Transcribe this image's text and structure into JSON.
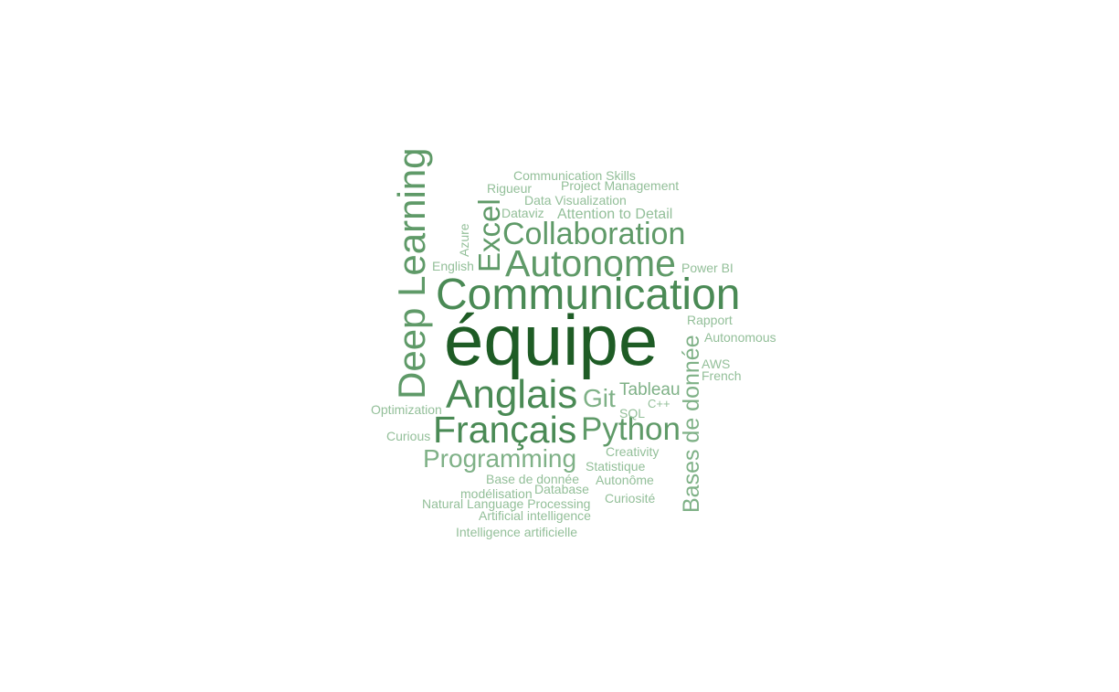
{
  "words": {
    "equipe": "équipe",
    "communication": "Communication",
    "autonome": "Autonome",
    "collaboration": "Collaboration",
    "deep_learning": "Deep Learning",
    "excel": "Excel",
    "anglais": "Anglais",
    "francais": "Français",
    "python": "Python",
    "git": "Git",
    "tableau": "Tableau",
    "programming": "Programming",
    "bases_de_donnee": "Bases de donnée",
    "communication_skills": "Communication Skills",
    "project_management": "Project Management",
    "rigueur": "Rigueur",
    "data_visualization": "Data Visualization",
    "dataviz": "Dataviz",
    "attention_to_detail": "Attention to Detail",
    "azure": "Azure",
    "english": "English",
    "power_bi": "Power BI",
    "rapport": "Rapport",
    "autonomous": "Autonomous",
    "aws": "AWS",
    "french": "French",
    "optimization": "Optimization",
    "cpp": "C++",
    "sql": "SQL",
    "curious": "Curious",
    "creativity": "Creativity",
    "statistique": "Statistique",
    "base_de_donnee": "Base de donnée",
    "autonome_accent": "Autonôme",
    "modelisation": "modélisation",
    "database": "Database",
    "curiosite": "Curiosité",
    "nlp": "Natural Language Processing",
    "artificial_intelligence": "Artificial intelligence",
    "intelligence_artificielle": "Intelligence artificielle"
  },
  "colors": {
    "dark": "#1e5c25",
    "mid": "#4a8a55",
    "light": "#7fb187",
    "pale": "#93bf99",
    "background": "#ffffff"
  }
}
